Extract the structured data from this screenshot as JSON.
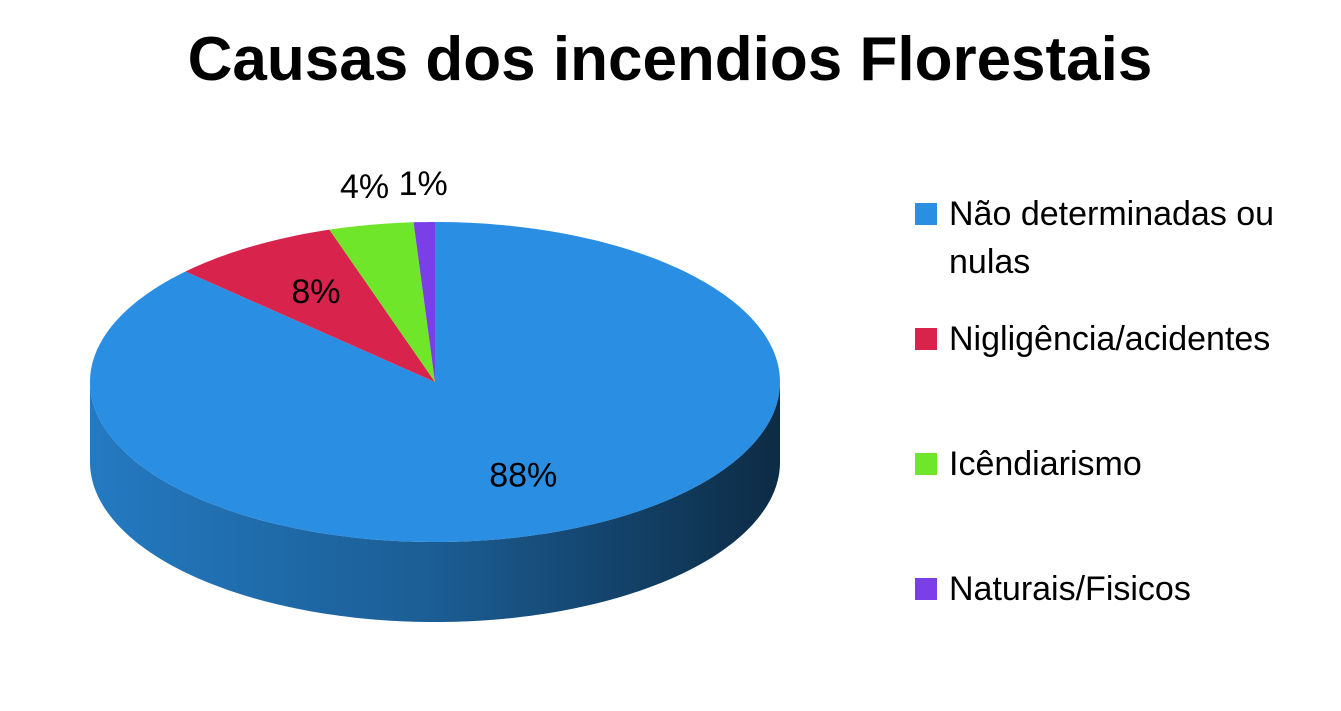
{
  "chart_data": {
    "type": "pie3d",
    "title": "Causas dos incendios Florestais",
    "series": [
      {
        "name": "Não determinadas ou nulas",
        "color": "#2a8fe3",
        "values": [
          88
        ],
        "value_labels": [
          "88%"
        ]
      },
      {
        "name": "Nigligência/acidentes",
        "color": "#d8244c",
        "values": [
          8
        ],
        "value_labels": [
          "8%"
        ]
      },
      {
        "name": "Icêndiarismo",
        "color": "#6fe62a",
        "values": [
          4
        ],
        "value_labels": [
          "4%"
        ]
      },
      {
        "name": "Naturais/Fisicos",
        "color": "#7b3fe8",
        "values": [
          1
        ],
        "value_labels": [
          "1%"
        ]
      }
    ],
    "legend": "right"
  }
}
